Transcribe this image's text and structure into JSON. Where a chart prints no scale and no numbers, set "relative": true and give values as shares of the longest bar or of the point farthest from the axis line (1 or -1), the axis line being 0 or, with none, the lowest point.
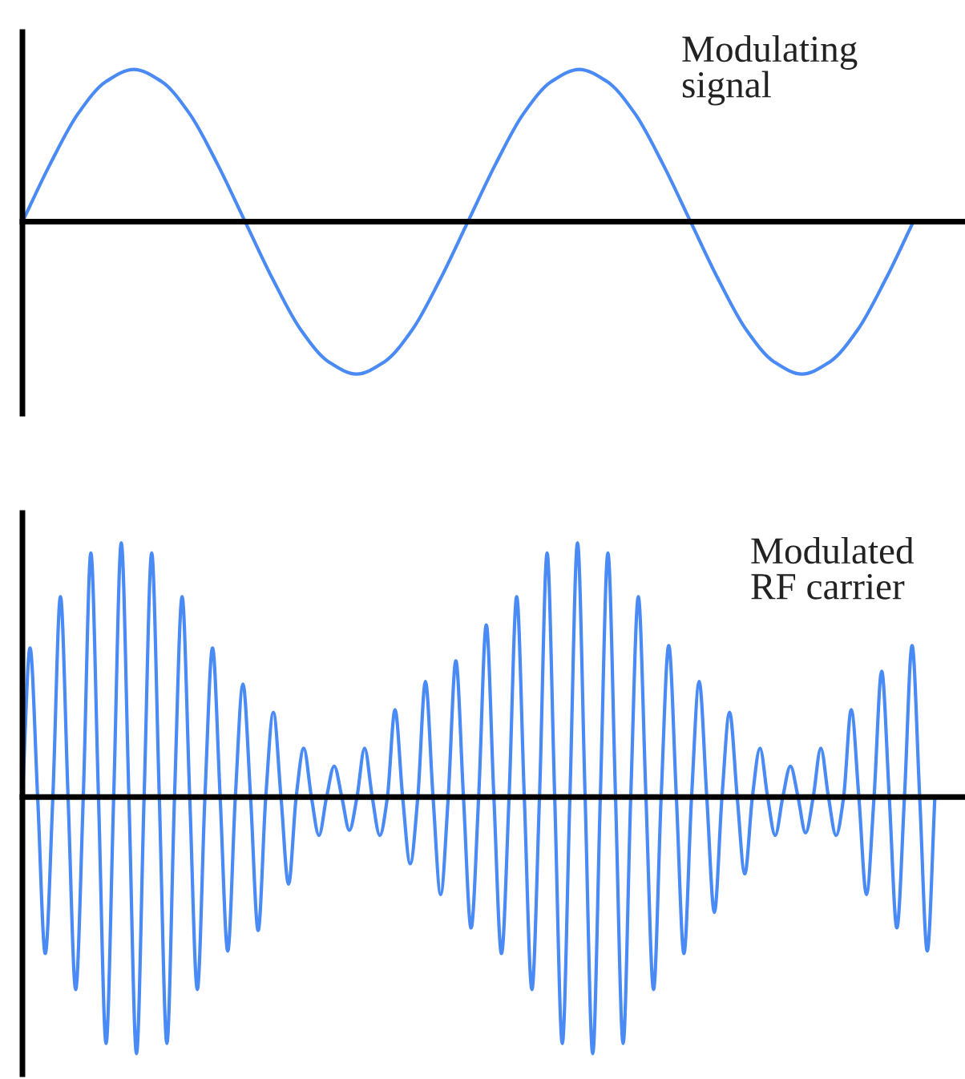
{
  "chart_data": [
    {
      "type": "line",
      "relative": true,
      "categories": [
        null,
        null,
        null,
        null,
        null,
        null,
        null,
        null,
        null,
        null,
        null,
        null,
        null,
        null,
        null,
        null,
        null,
        null,
        null,
        null,
        null,
        null,
        null,
        null,
        null,
        null,
        null,
        null,
        null,
        null,
        null,
        null,
        null
      ],
      "series": [
        {
          "name": "Modulating\nsignal",
          "color": "#4a8af4",
          "values": [
            0,
            0.38,
            0.71,
            0.92,
            1,
            0.92,
            0.71,
            0.38,
            0,
            -0.38,
            -0.71,
            -0.92,
            -1,
            -0.92,
            -0.71,
            -0.38,
            0,
            0.38,
            0.71,
            0.92,
            1,
            0.92,
            0.71,
            0.38,
            0,
            -0.38,
            -0.71,
            -0.92,
            -1,
            -0.92,
            -0.71,
            -0.38,
            0
          ]
        }
      ]
    },
    {
      "type": "line",
      "relative": true,
      "categories": [
        null,
        null,
        null,
        null,
        null,
        null,
        null,
        null,
        null,
        null,
        null,
        null,
        null,
        null,
        null,
        null,
        null,
        null,
        null,
        null,
        null,
        null,
        null,
        null,
        null,
        null,
        null,
        null,
        null,
        null,
        null,
        null,
        null,
        null,
        null,
        null,
        null,
        null,
        null,
        null,
        null,
        null,
        null,
        null,
        null,
        null,
        null,
        null,
        null,
        null,
        null,
        null,
        null,
        null,
        null,
        null,
        null,
        null,
        null,
        null,
        null,
        null,
        null,
        null,
        null,
        null,
        null,
        null,
        null,
        null,
        null,
        null,
        null,
        null,
        null,
        null,
        null,
        null,
        null,
        null,
        null,
        null,
        null,
        null,
        null,
        null,
        null,
        null,
        null,
        null,
        null,
        null,
        null,
        null,
        null,
        null,
        null,
        null,
        null,
        null,
        null,
        null,
        null,
        null,
        null,
        null,
        null,
        null,
        null,
        null,
        null,
        null,
        null,
        null,
        null,
        null,
        null,
        null,
        null,
        null,
        null
      ],
      "series": [
        {
          "name": "Modulated\nRF carrier",
          "color": "#4a8af4",
          "values": [
            0,
            0.58,
            0,
            -0.61,
            0,
            0.78,
            0,
            -0.75,
            0,
            0.95,
            0,
            -0.96,
            0,
            0.99,
            0,
            -1,
            0,
            0.95,
            0,
            -0.96,
            0,
            0.78,
            0,
            -0.75,
            0,
            0.58,
            0,
            -0.6,
            0,
            0.44,
            0,
            -0.52,
            0,
            0.33,
            0,
            -0.34,
            0,
            0.19,
            0,
            -0.15,
            0,
            0.12,
            0,
            -0.13,
            0,
            0.19,
            0,
            -0.15,
            0,
            0.34,
            0,
            -0.26,
            0,
            0.45,
            0,
            -0.38,
            0,
            0.53,
            0,
            -0.51,
            0,
            0.67,
            0,
            -0.61,
            0,
            0.78,
            0,
            -0.75,
            0,
            0.95,
            0,
            -0.96,
            0,
            0.99,
            0,
            -1,
            0,
            0.95,
            0,
            -0.96,
            0,
            0.78,
            0,
            -0.75,
            0,
            0.59,
            0,
            -0.61,
            0,
            0.45,
            0,
            -0.45,
            0,
            0.33,
            0,
            -0.3,
            0,
            0.19,
            0,
            -0.15,
            0,
            0.12,
            0,
            -0.14,
            0,
            0.19,
            0,
            -0.15,
            0,
            0.34,
            0,
            -0.38,
            0,
            0.49,
            0,
            -0.51,
            0,
            0.59,
            0,
            -0.6,
            0
          ]
        }
      ]
    }
  ]
}
